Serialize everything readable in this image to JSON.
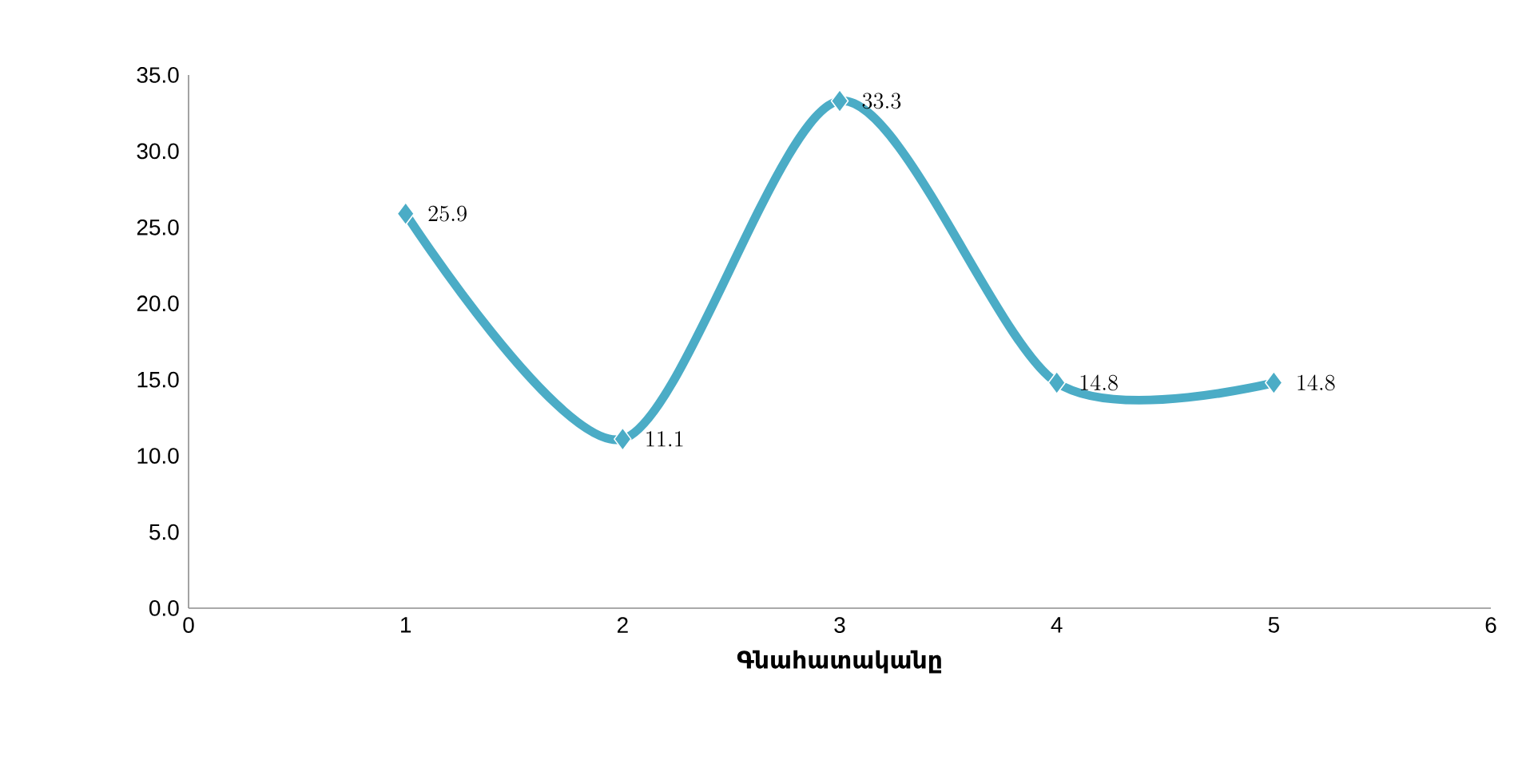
{
  "chart_data": {
    "type": "line",
    "xlabel": "Գնահատականը",
    "x": [
      1,
      2,
      3,
      4,
      5
    ],
    "series": [
      {
        "color": "#4bacc6",
        "values": [
          25.9,
          11.1,
          33.3,
          14.8,
          14.8
        ]
      }
    ],
    "xlim": [
      0,
      6
    ],
    "xticks": [
      0,
      1,
      2,
      3,
      4,
      5,
      6
    ],
    "ylim": [
      0,
      35
    ],
    "yticks": [
      {
        "value": 0,
        "label": "0.0"
      },
      {
        "value": 5,
        "label": "5.0"
      },
      {
        "value": 10,
        "label": "10.0"
      },
      {
        "value": 15,
        "label": "15.0"
      },
      {
        "value": 20,
        "label": "20.0"
      },
      {
        "value": 25,
        "label": "25.0"
      },
      {
        "value": 30,
        "label": "30.0"
      },
      {
        "value": 35,
        "label": "35.0"
      }
    ],
    "marker": "diamond",
    "line_style": "solid",
    "data_labels": true,
    "grid": false
  }
}
